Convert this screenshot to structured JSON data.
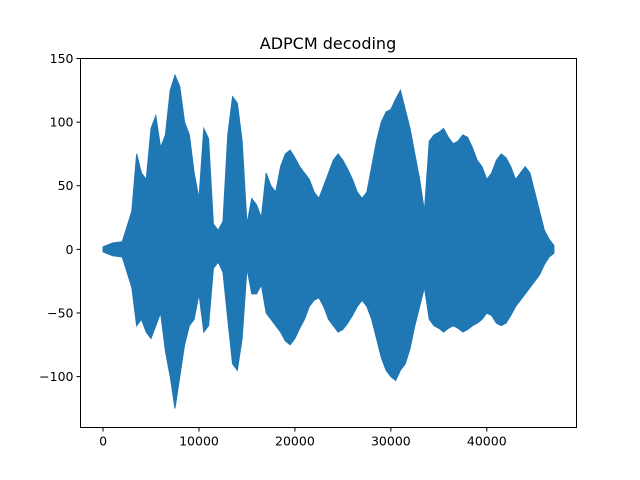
{
  "chart_data": {
    "type": "area",
    "title": "ADPCM decoding",
    "xlabel": "",
    "ylabel": "",
    "xlim": [
      -2350,
      49350
    ],
    "ylim": [
      -140,
      150
    ],
    "x_ticks": [
      0,
      10000,
      20000,
      30000,
      40000
    ],
    "x_tick_labels": [
      "0",
      "10000",
      "20000",
      "30000",
      "40000"
    ],
    "y_ticks": [
      -100,
      -50,
      0,
      50,
      100,
      150
    ],
    "y_tick_labels": [
      "−100",
      "−50",
      "0",
      "50",
      "100",
      "150"
    ],
    "grid": false,
    "legend": "none",
    "series": [
      {
        "color": "#1f77b4",
        "x": [
          0,
          1000,
          2000,
          3000,
          3500,
          4000,
          4500,
          5000,
          5500,
          6000,
          6500,
          7000,
          7500,
          8000,
          8500,
          9000,
          9500,
          10000,
          10500,
          11000,
          11500,
          12000,
          12500,
          13000,
          13500,
          14000,
          14500,
          15000,
          15500,
          16000,
          16500,
          17000,
          17500,
          18000,
          18500,
          19000,
          19500,
          20000,
          20500,
          21000,
          21500,
          22000,
          22500,
          23000,
          23500,
          24000,
          24500,
          25000,
          25500,
          26000,
          26500,
          27000,
          27500,
          28000,
          28500,
          29000,
          29500,
          30000,
          30500,
          31000,
          31500,
          32000,
          32500,
          33000,
          33500,
          34000,
          34500,
          35000,
          35500,
          36000,
          36500,
          37000,
          37500,
          38000,
          38500,
          39000,
          39500,
          40000,
          40500,
          41000,
          41500,
          42000,
          42500,
          43000,
          43500,
          44000,
          44500,
          45000,
          45500,
          46000,
          46500,
          47000
        ],
        "upper": [
          2,
          5,
          6,
          30,
          75,
          60,
          55,
          95,
          105,
          80,
          90,
          125,
          137,
          128,
          100,
          90,
          60,
          40,
          95,
          87,
          20,
          15,
          22,
          90,
          120,
          115,
          85,
          20,
          40,
          35,
          25,
          60,
          50,
          45,
          65,
          75,
          78,
          72,
          65,
          60,
          55,
          45,
          40,
          50,
          60,
          70,
          75,
          70,
          63,
          55,
          45,
          40,
          45,
          65,
          85,
          100,
          108,
          110,
          118,
          125,
          110,
          95,
          75,
          55,
          30,
          85,
          90,
          92,
          95,
          88,
          83,
          85,
          90,
          88,
          80,
          70,
          65,
          55,
          60,
          70,
          75,
          72,
          65,
          55,
          60,
          65,
          60,
          45,
          30,
          15,
          8,
          3
        ],
        "lower": [
          -2,
          -5,
          -6,
          -30,
          -60,
          -55,
          -65,
          -70,
          -60,
          -50,
          -80,
          -100,
          -125,
          -100,
          -75,
          -60,
          -55,
          -35,
          -65,
          -60,
          -15,
          -10,
          -18,
          -55,
          -90,
          -95,
          -70,
          -15,
          -35,
          -35,
          -28,
          -50,
          -55,
          -60,
          -65,
          -72,
          -75,
          -70,
          -62,
          -55,
          -45,
          -40,
          -38,
          -45,
          -55,
          -60,
          -65,
          -63,
          -58,
          -52,
          -45,
          -40,
          -45,
          -55,
          -70,
          -85,
          -95,
          -100,
          -103,
          -95,
          -90,
          -78,
          -60,
          -45,
          -30,
          -55,
          -60,
          -62,
          -65,
          -62,
          -60,
          -62,
          -65,
          -63,
          -60,
          -58,
          -55,
          -50,
          -52,
          -58,
          -60,
          -58,
          -52,
          -45,
          -40,
          -35,
          -30,
          -25,
          -20,
          -12,
          -6,
          -3
        ]
      }
    ]
  }
}
